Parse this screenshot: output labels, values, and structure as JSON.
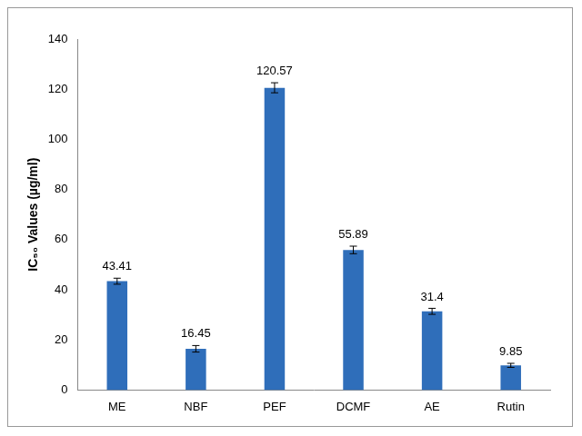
{
  "chart_data": {
    "type": "bar",
    "y_label": "IC₅₀ Values (µg/ml)",
    "categories": [
      "ME",
      "NBF",
      "PEF",
      "DCMF",
      "AE",
      "Rutin"
    ],
    "values": [
      43.41,
      16.45,
      120.57,
      55.89,
      31.4,
      9.85
    ],
    "errors": [
      1.2,
      1.3,
      2.0,
      1.5,
      1.2,
      0.8
    ],
    "color": "#2f6eba",
    "ylim": [
      0,
      140
    ],
    "yticks": [
      0,
      20,
      40,
      60,
      80,
      100,
      120,
      140
    ],
    "grid": false,
    "data_labels": true
  }
}
